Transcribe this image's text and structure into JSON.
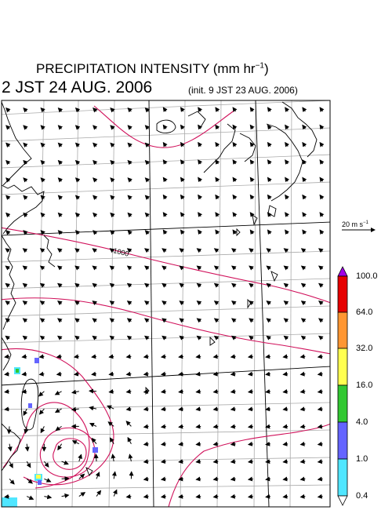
{
  "title": {
    "main": "PRECIPITATION INTENSITY (mm hr",
    "main_exp": "−1",
    "main_close": ")",
    "valid_time": "2 JST 24 AUG. 2006",
    "init_time": "(init. 9 JST 23 AUG. 2006)"
  },
  "wind_scale": {
    "label": "20 m s",
    "exp": "−1"
  },
  "isobar_labels": [
    "1000"
  ],
  "colorbar": {
    "levels": [
      "100.0",
      "64.0",
      "32.0",
      "16.0",
      "4.0",
      "1.0",
      "0.4"
    ],
    "colors": [
      "#a000e6",
      "#e60000",
      "#ff9632",
      "#ffff50",
      "#32c832",
      "#6464ff",
      "#50e6ff",
      "#ffffff"
    ]
  },
  "colors": {
    "isobar": "#d0105a",
    "grid": "#aaaaaa",
    "coast": "#000000"
  }
}
